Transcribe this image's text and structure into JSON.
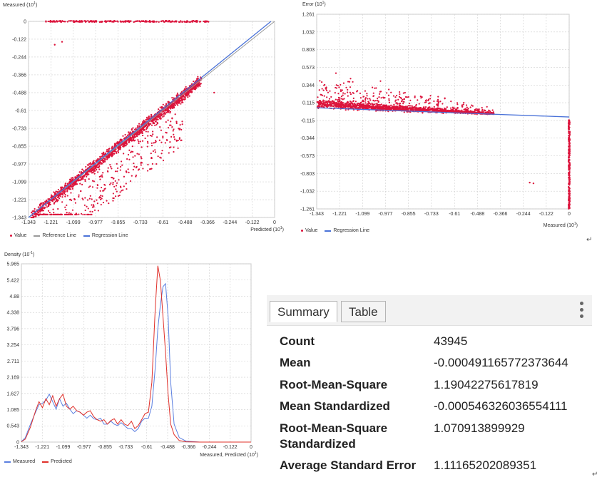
{
  "colors": {
    "value_red": "#dc143c",
    "regression_blue": "#4a72d8",
    "reference_gray": "#9a9a9a",
    "measured_blue": "#5b7fe0",
    "predicted_red": "#e0302a",
    "grid": "#cfcfcf"
  },
  "paragraph_mark": "↵",
  "chart_data": [
    {
      "id": "predicted_vs_measured",
      "type": "scatter",
      "ylabel": "Measured",
      "ylabel_unit_exp": "1",
      "xlabel": "Predicted",
      "xlabel_unit_exp": "1",
      "axis_prefix": "(10",
      "axis_suffix": ")",
      "x_ticks": [
        "-1.343",
        "-1.221",
        "-1.099",
        "-0.977",
        "-0.855",
        "-0.733",
        "-0.61",
        "-0.488",
        "-0.366",
        "-0.244",
        "-0.122",
        "0"
      ],
      "y_ticks": [
        "0",
        "-0.122",
        "-0.244",
        "-0.366",
        "-0.488",
        "-0.61",
        "-0.733",
        "-0.855",
        "-0.977",
        "-1.099",
        "-1.221",
        "-1.343"
      ],
      "xlim": [
        -1.343,
        0
      ],
      "ylim": [
        -1.343,
        0
      ],
      "grid": true,
      "legend": [
        "Value",
        "Reference Line",
        "Regression Line"
      ],
      "regression_line": {
        "x": [
          -1.343,
          -0.02
        ],
        "y": [
          -1.343,
          0
        ]
      },
      "reference_line": {
        "x": [
          -1.343,
          0
        ],
        "y": [
          -1.343,
          0
        ]
      },
      "point_bands": [
        {
          "x_range": [
            -1.33,
            -0.4
          ],
          "y_offset": [
            -0.06,
            0.05
          ],
          "count": 1700
        },
        {
          "x_range": [
            -1.3,
            -0.5
          ],
          "y_offset": [
            -0.35,
            -0.05
          ],
          "count": 350
        },
        {
          "x_range": [
            -1.25,
            -0.36
          ],
          "y_fixed": 0,
          "count": 260
        }
      ],
      "outliers": [
        {
          "x": -1.16,
          "y": -0.14
        },
        {
          "x": -1.2,
          "y": -0.16
        },
        {
          "x": -0.33,
          "y": -0.488
        }
      ]
    },
    {
      "id": "error_vs_measured",
      "type": "scatter",
      "ylabel": "Error",
      "ylabel_unit_exp": "1",
      "xlabel": "Measured",
      "xlabel_unit_exp": "1",
      "axis_prefix": "(10",
      "axis_suffix": ")",
      "x_ticks": [
        "-1.343",
        "-1.221",
        "-1.099",
        "-0.977",
        "-0.855",
        "-0.733",
        "-0.61",
        "-0.488",
        "-0.366",
        "-0.244",
        "-0.122",
        "0"
      ],
      "y_ticks": [
        "1.261",
        "1.032",
        "0.803",
        "0.573",
        "0.344",
        "0.115",
        "-0.115",
        "-0.344",
        "-0.573",
        "-0.803",
        "-1.032",
        "-1.261"
      ],
      "xlim": [
        -1.343,
        0
      ],
      "ylim": [
        -1.261,
        1.261
      ],
      "grid": true,
      "legend": [
        "Value",
        "Regression Line"
      ],
      "regression_line": {
        "x": [
          -1.343,
          0
        ],
        "y": [
          0.05,
          -0.07
        ]
      },
      "point_bands": [
        {
          "x_range": [
            -1.34,
            -0.4
          ],
          "y_center": [
            0.1,
            -0.03
          ],
          "spread": [
            0.05,
            0.35
          ],
          "count": 1600
        },
        {
          "x_fixed": 0,
          "y_range": [
            -1.26,
            -0.1
          ],
          "count": 250
        }
      ],
      "outliers": [
        {
          "x": -0.21,
          "y": -0.92
        },
        {
          "x": -0.19,
          "y": -0.93
        }
      ]
    },
    {
      "id": "density",
      "type": "line",
      "ylabel": "Density",
      "ylabel_unit_exp": "-1",
      "xlabel": "Measured, Predicted",
      "xlabel_unit_exp": "1",
      "axis_prefix": "(10",
      "axis_suffix": ")",
      "x_ticks": [
        "-1.343",
        "-1.221",
        "-1.099",
        "-0.977",
        "-0.855",
        "-0.733",
        "-0.61",
        "-0.488",
        "-0.366",
        "-0.244",
        "-0.122",
        "0"
      ],
      "y_ticks": [
        "5.965",
        "5.422",
        "4.88",
        "4.338",
        "3.796",
        "3.254",
        "2.711",
        "2.169",
        "1.627",
        "1.085",
        "0.543",
        "0"
      ],
      "xlim": [
        -1.343,
        0
      ],
      "ylim": [
        0,
        5.965
      ],
      "grid": true,
      "legend": [
        "Measured",
        "Predicted"
      ],
      "x": [
        -1.343,
        -1.32,
        -1.29,
        -1.26,
        -1.24,
        -1.22,
        -1.2,
        -1.18,
        -1.16,
        -1.14,
        -1.12,
        -1.1,
        -1.08,
        -1.06,
        -1.04,
        -1.02,
        -1.0,
        -0.98,
        -0.96,
        -0.94,
        -0.92,
        -0.9,
        -0.88,
        -0.86,
        -0.84,
        -0.82,
        -0.8,
        -0.78,
        -0.76,
        -0.74,
        -0.72,
        -0.7,
        -0.68,
        -0.66,
        -0.64,
        -0.62,
        -0.6,
        -0.58,
        -0.56,
        -0.545,
        -0.53,
        -0.515,
        -0.5,
        -0.485,
        -0.47,
        -0.45,
        -0.42,
        -0.38,
        -0.3,
        -0.2,
        0
      ],
      "series": [
        {
          "name": "Measured",
          "values": [
            0.02,
            0.15,
            0.6,
            1.0,
            1.25,
            1.3,
            1.4,
            1.6,
            1.35,
            1.1,
            1.45,
            1.2,
            1.3,
            1.1,
            0.95,
            1.05,
            1.0,
            0.9,
            0.8,
            0.9,
            0.78,
            0.75,
            0.8,
            0.6,
            0.6,
            0.7,
            0.6,
            0.55,
            0.65,
            0.55,
            0.45,
            0.45,
            0.35,
            0.45,
            0.7,
            0.8,
            0.8,
            1.2,
            2.5,
            3.8,
            4.6,
            5.2,
            5.3,
            4.2,
            2.0,
            0.6,
            0.15,
            0.03,
            0.0,
            0.0,
            0.0
          ]
        },
        {
          "name": "Predicted",
          "values": [
            0.01,
            0.1,
            0.5,
            1.05,
            1.35,
            1.15,
            1.45,
            1.25,
            1.55,
            1.2,
            1.45,
            1.6,
            1.2,
            1.1,
            1.2,
            1.05,
            1.0,
            0.9,
            1.0,
            1.05,
            0.85,
            0.75,
            0.7,
            0.75,
            0.6,
            0.72,
            0.78,
            0.6,
            0.75,
            0.6,
            0.55,
            0.7,
            0.45,
            0.55,
            0.75,
            0.95,
            1.0,
            2.0,
            4.5,
            5.9,
            5.4,
            4.2,
            3.0,
            1.6,
            0.6,
            0.25,
            0.05,
            0.01,
            0.0,
            0.0,
            0.0
          ]
        }
      ]
    }
  ],
  "summary": {
    "tabs": [
      "Summary",
      "Table"
    ],
    "active_tab": "Summary",
    "rows": [
      {
        "label": "Count",
        "value": "43945"
      },
      {
        "label": "Mean",
        "value": "-0.000491165772373644"
      },
      {
        "label": "Root-Mean-Square",
        "value": "1.19042275617819"
      },
      {
        "label": "Mean Standardized",
        "value": "-0.000546326036554111"
      },
      {
        "label": "Root-Mean-Square Standardized",
        "value": "1.070913899929"
      },
      {
        "label": "Average Standard Error",
        "value": "1.11165202089351"
      }
    ]
  }
}
